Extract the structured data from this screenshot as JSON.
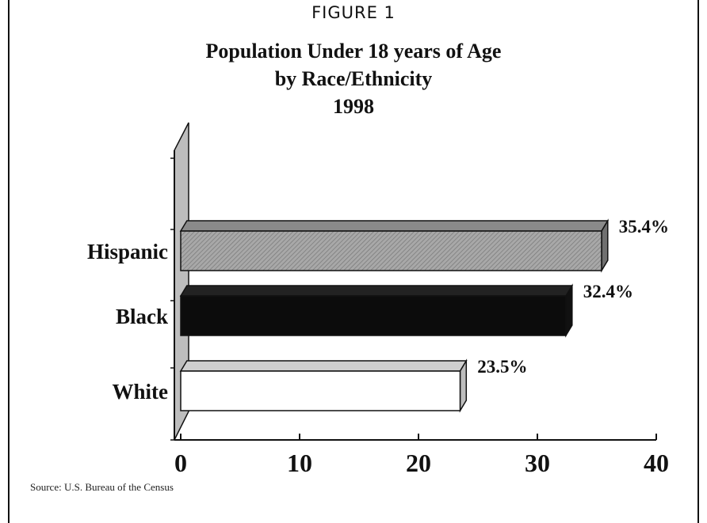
{
  "figure_label": "FIGURE 1",
  "source": "Source: U.S. Bureau of the Census",
  "chart_data": {
    "type": "bar",
    "orientation": "horizontal",
    "title": "Population Under 18 years of Age",
    "subtitle_lines": [
      "by Race/Ethnicity",
      "1998"
    ],
    "categories": [
      "Hispanic",
      "Black",
      "White"
    ],
    "values": [
      35.4,
      32.4,
      23.5
    ],
    "value_labels": [
      "35.4%",
      "32.4%",
      "23.5%"
    ],
    "xlim": [
      0,
      40
    ],
    "xticks": [
      0,
      10,
      20,
      30,
      40
    ],
    "xlabel": "",
    "ylabel": "",
    "grid": false,
    "legend": "none",
    "style": "3d",
    "colors": [
      "#9a9a9a",
      "#0c0c0c",
      "#ffffff"
    ]
  }
}
